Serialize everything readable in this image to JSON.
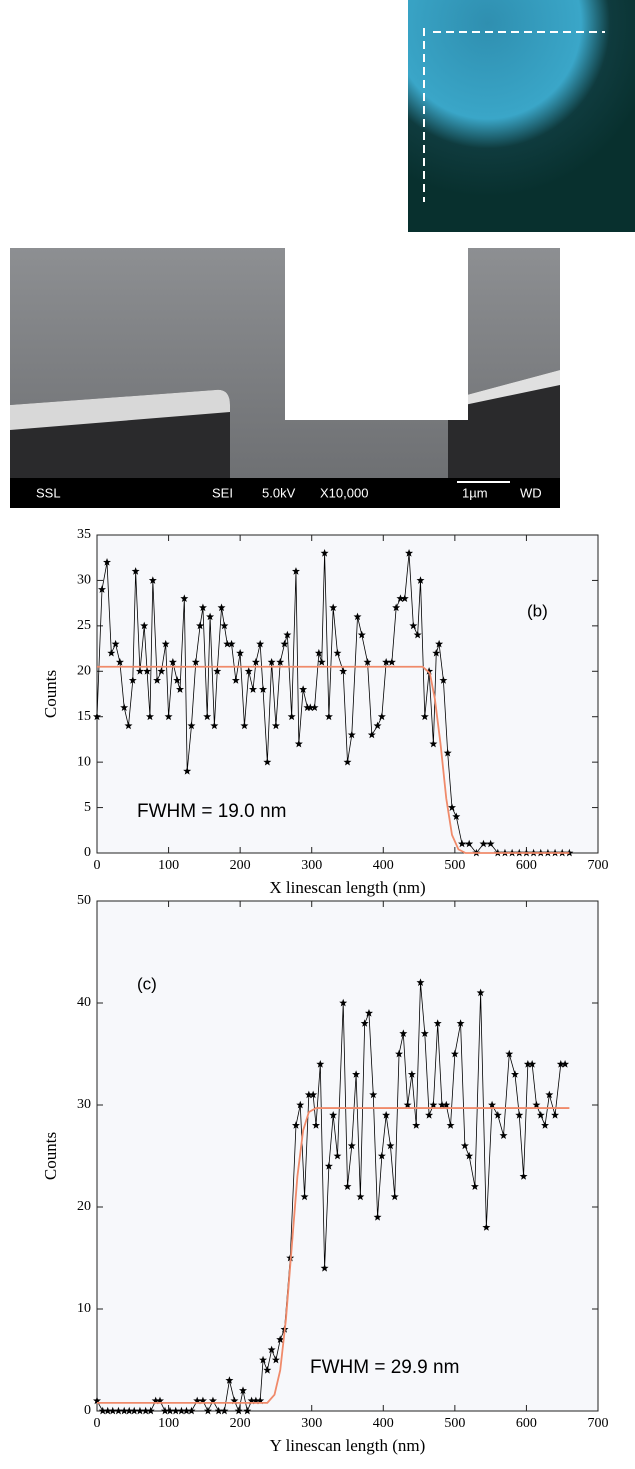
{
  "images": {
    "sem_labels": [
      "SSL",
      "SEI",
      "5.0kV",
      "X10,000",
      "1µm",
      "WD"
    ]
  },
  "chart_data": [
    {
      "type": "line",
      "panel_label": "(b)",
      "annotation": "FWHM = 19.0 nm",
      "x_label": "X linescan length (nm)",
      "y_label": "Counts",
      "xlim": [
        0,
        700
      ],
      "ylim": [
        0,
        35
      ],
      "xticks": [
        0,
        100,
        200,
        300,
        400,
        500,
        600,
        700
      ],
      "yticks": [
        0,
        5,
        10,
        15,
        20,
        25,
        30,
        35
      ],
      "series": [
        {
          "color": "#000000",
          "marker": "star",
          "x": [
            0,
            7,
            14,
            20,
            26,
            32,
            38,
            44,
            50,
            54,
            60,
            66,
            70,
            74,
            78,
            84,
            90,
            96,
            100,
            106,
            112,
            116,
            122,
            126,
            132,
            138,
            144,
            148,
            154,
            158,
            164,
            168,
            174,
            178,
            182,
            188,
            194,
            200,
            206,
            212,
            218,
            222,
            228,
            232,
            238,
            244,
            250,
            256,
            262,
            266,
            272,
            278,
            282,
            288,
            294,
            298,
            304,
            310,
            314,
            318,
            324,
            330,
            336,
            344,
            350,
            356,
            364,
            370,
            378,
            384,
            392,
            398,
            404,
            412,
            418,
            424,
            430,
            436,
            442,
            448,
            452,
            458,
            464,
            470,
            474,
            478,
            484,
            490,
            496,
            502,
            510,
            520,
            530,
            540,
            550,
            560,
            570,
            580,
            590,
            600,
            610,
            620,
            630,
            640,
            650,
            660
          ],
          "values": [
            15,
            29,
            32,
            22,
            23,
            21,
            16,
            14,
            19,
            31,
            20,
            25,
            20,
            15,
            30,
            19,
            20,
            23,
            15,
            21,
            19,
            18,
            28,
            9,
            14,
            21,
            25,
            27,
            15,
            26,
            14,
            20,
            27,
            25,
            23,
            23,
            19,
            22,
            14,
            20,
            18,
            21,
            23,
            18,
            10,
            21,
            14,
            21,
            23,
            24,
            15,
            31,
            12,
            18,
            16,
            16,
            16,
            22,
            21,
            33,
            15,
            27,
            22,
            20,
            10,
            13,
            26,
            24,
            21,
            13,
            14,
            15,
            21,
            21,
            27,
            28,
            28,
            33,
            25,
            24,
            30,
            15,
            20,
            12,
            22,
            23,
            19,
            11,
            5,
            4,
            1,
            1,
            0,
            1,
            1,
            0,
            0,
            0,
            0,
            0,
            0,
            0,
            0,
            0,
            0,
            0
          ]
        },
        {
          "color": "#f08a6a",
          "x": [
            0,
            455,
            465,
            472,
            480,
            488,
            496,
            505,
            515,
            660
          ],
          "values": [
            20.5,
            20.5,
            19.8,
            17,
            12,
            6,
            2,
            0.4,
            0,
            0
          ]
        }
      ]
    },
    {
      "type": "line",
      "panel_label": "(c)",
      "annotation": "FWHM = 29.9 nm",
      "x_label": "Y linescan length (nm)",
      "y_label": "Counts",
      "xlim": [
        0,
        700
      ],
      "ylim": [
        0,
        50
      ],
      "xticks": [
        0,
        100,
        200,
        300,
        400,
        500,
        600,
        700
      ],
      "yticks": [
        0,
        10,
        20,
        30,
        40,
        50
      ],
      "series": [
        {
          "color": "#000000",
          "marker": "star",
          "x": [
            0,
            8,
            15,
            22,
            30,
            38,
            45,
            52,
            60,
            68,
            75,
            82,
            88,
            95,
            102,
            110,
            118,
            125,
            132,
            140,
            148,
            155,
            162,
            170,
            178,
            185,
            192,
            198,
            204,
            210,
            216,
            222,
            228,
            232,
            238,
            244,
            250,
            256,
            262,
            270,
            278,
            284,
            290,
            296,
            302,
            306,
            312,
            318,
            324,
            330,
            336,
            344,
            350,
            356,
            362,
            368,
            374,
            380,
            386,
            392,
            398,
            404,
            410,
            416,
            422,
            428,
            434,
            440,
            446,
            452,
            458,
            464,
            470,
            476,
            482,
            488,
            494,
            500,
            508,
            514,
            520,
            528,
            536,
            544,
            552,
            560,
            568,
            576,
            584,
            590,
            596,
            602,
            608,
            614,
            620,
            626,
            632,
            640,
            648,
            654
          ],
          "values": [
            1,
            0,
            0,
            0,
            0,
            0,
            0,
            0,
            0,
            0,
            0,
            1,
            1,
            0,
            0,
            0,
            0,
            0,
            0,
            1,
            1,
            0,
            1,
            0,
            0,
            3,
            1,
            0,
            2,
            0,
            1,
            1,
            1,
            5,
            4,
            6,
            5,
            7,
            8,
            15,
            28,
            30,
            21,
            31,
            31,
            28,
            34,
            14,
            24,
            29,
            25,
            40,
            22,
            26,
            33,
            21,
            38,
            39,
            31,
            19,
            25,
            29,
            26,
            21,
            35,
            37,
            30,
            33,
            28,
            42,
            37,
            29,
            30,
            38,
            30,
            30,
            28,
            35,
            38,
            26,
            25,
            22,
            41,
            18,
            30,
            29,
            27,
            35,
            33,
            29,
            23,
            34,
            34,
            30,
            29,
            28,
            31,
            29,
            34,
            34
          ]
        },
        {
          "color": "#f08a6a",
          "x": [
            0,
            238,
            248,
            256,
            264,
            272,
            280,
            288,
            296,
            306,
            660
          ],
          "values": [
            0.8,
            0.8,
            1.6,
            4,
            9,
            16,
            23,
            27.5,
            29.3,
            29.7,
            29.7
          ]
        }
      ]
    }
  ]
}
